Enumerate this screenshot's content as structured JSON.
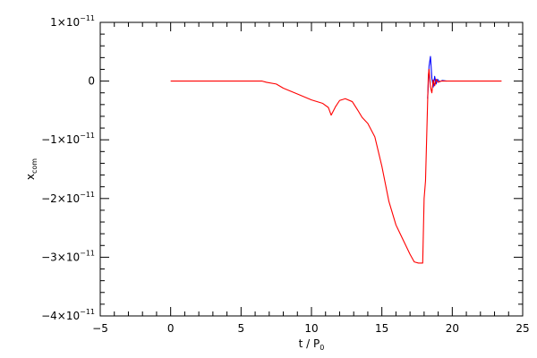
{
  "chart_data": {
    "type": "line",
    "xlabel": "t / P",
    "xlabel_sub": "0",
    "ylabel": "x",
    "ylabel_sub": "com",
    "xlim": [
      -5,
      25
    ],
    "ylim": [
      -4e-11,
      1e-11
    ],
    "x_ticks": [
      -5,
      0,
      5,
      10,
      15,
      20,
      25
    ],
    "x_tick_labels": [
      "−5",
      "0",
      "5",
      "10",
      "15",
      "20",
      "25"
    ],
    "y_ticks": [
      1e-11,
      0,
      -1e-11,
      -2e-11,
      -3e-11,
      -4e-11
    ],
    "y_tick_labels": [
      {
        "mant": "1×10",
        "exp": "−11"
      },
      {
        "mant": "0",
        "exp": ""
      },
      {
        "mant": "−1×10",
        "exp": "−11"
      },
      {
        "mant": "−2×10",
        "exp": "−11"
      },
      {
        "mant": "−3×10",
        "exp": "−11"
      },
      {
        "mant": "−4×10",
        "exp": "−11"
      }
    ],
    "series": [
      {
        "color": "#0000ff",
        "x": [
          18.25,
          18.35,
          18.45,
          18.55,
          18.65,
          18.75,
          18.85,
          18.95,
          19.1,
          19.3,
          19.6
        ],
        "y": [
          -3e-12,
          2.5e-12,
          4.2e-12,
          5e-13,
          -1e-12,
          8e-13,
          -5e-13,
          3e-13,
          -1e-13,
          1e-13,
          0
        ]
      },
      {
        "color": "#ff0000",
        "x": [
          0,
          6.5,
          6.8,
          7.5,
          8,
          9,
          10,
          10.8,
          11.2,
          11.4,
          11.7,
          12,
          12.4,
          12.9,
          13.3,
          13.6,
          14,
          14.5,
          15,
          15.5,
          16,
          16.5,
          17,
          17.3,
          17.6,
          17.9,
          18.0,
          18.1,
          18.2,
          18.3,
          18.35,
          18.45,
          18.55,
          18.65,
          18.75,
          18.85,
          19.0,
          19.2,
          23.5
        ],
        "y": [
          0,
          0,
          -2e-13,
          -5e-13,
          -1.2e-12,
          -2.2e-12,
          -3.2e-12,
          -3.8e-12,
          -4.5e-12,
          -5.8e-12,
          -4.4e-12,
          -3.3e-12,
          -3e-12,
          -3.5e-12,
          -5e-12,
          -6.2e-12,
          -7.2e-12,
          -9.5e-12,
          -1.45e-11,
          -2.05e-11,
          -2.45e-11,
          -2.7e-11,
          -2.95e-11,
          -3.08e-11,
          -3.1e-11,
          -3.1e-11,
          -2e-11,
          -1.7e-11,
          -8e-12,
          1e-12,
          2e-12,
          -1e-12,
          -2e-12,
          2e-13,
          -8e-13,
          3e-13,
          -2e-13,
          0,
          0
        ]
      }
    ]
  }
}
